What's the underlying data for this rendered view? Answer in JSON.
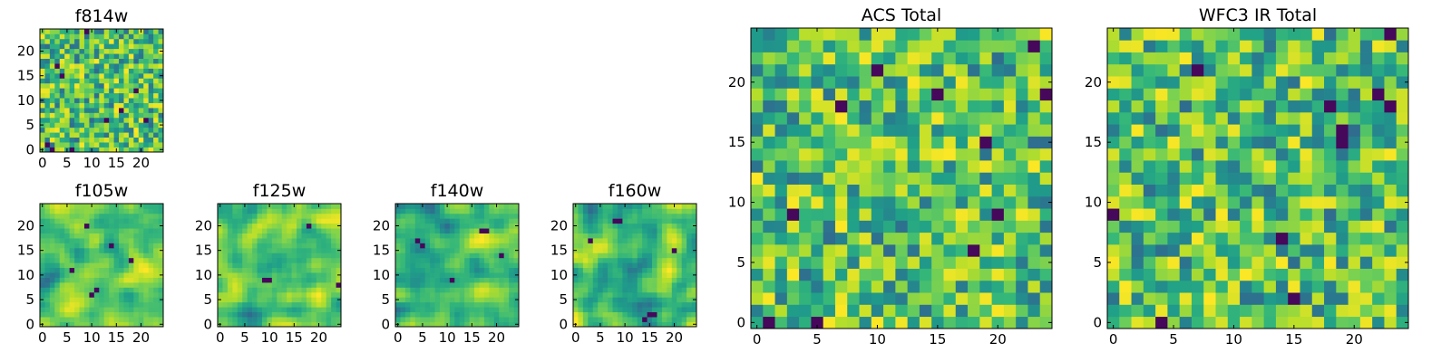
{
  "chart_data": [
    {
      "id": "f814w",
      "type": "heatmap",
      "title": "f814w",
      "grid_size": 25,
      "xticks": [
        "0",
        "5",
        "10",
        "15",
        "20"
      ],
      "yticks": [
        "0",
        "5",
        "10",
        "15",
        "20"
      ],
      "xlim": [
        -0.5,
        24.5
      ],
      "ylim": [
        -0.5,
        24.5
      ],
      "colormap": "viridis",
      "seed": 814,
      "smooth": 0,
      "dark_cells": [
        [
          2,
          0
        ],
        [
          6,
          0
        ],
        [
          1,
          1
        ],
        [
          21,
          6
        ],
        [
          13,
          6
        ],
        [
          3,
          17
        ],
        [
          9,
          24
        ],
        [
          16,
          8
        ],
        [
          4,
          15
        ],
        [
          19,
          12
        ]
      ]
    },
    {
      "id": "f105w",
      "type": "heatmap",
      "title": "f105w",
      "grid_size": 25,
      "xticks": [
        "0",
        "5",
        "10",
        "15",
        "20"
      ],
      "yticks": [
        "0",
        "5",
        "10",
        "15",
        "20"
      ],
      "xlim": [
        -0.5,
        24.5
      ],
      "ylim": [
        -0.5,
        24.5
      ],
      "colormap": "viridis",
      "seed": 105,
      "smooth": 2,
      "dark_cells": [
        [
          10,
          6
        ],
        [
          11,
          7
        ],
        [
          9,
          20
        ],
        [
          14,
          16
        ],
        [
          6,
          11
        ],
        [
          18,
          13
        ]
      ]
    },
    {
      "id": "f125w",
      "type": "heatmap",
      "title": "f125w",
      "grid_size": 25,
      "xticks": [
        "0",
        "5",
        "10",
        "15",
        "20"
      ],
      "yticks": [
        "0",
        "5",
        "10",
        "15",
        "20"
      ],
      "xlim": [
        -0.5,
        24.5
      ],
      "ylim": [
        -0.5,
        24.5
      ],
      "colormap": "viridis",
      "seed": 125,
      "smooth": 2,
      "dark_cells": [
        [
          9,
          9
        ],
        [
          10,
          9
        ],
        [
          24,
          8
        ],
        [
          18,
          20
        ]
      ]
    },
    {
      "id": "f140w",
      "type": "heatmap",
      "title": "f140w",
      "grid_size": 25,
      "xticks": [
        "0",
        "5",
        "10",
        "15",
        "20"
      ],
      "yticks": [
        "0",
        "5",
        "10",
        "15",
        "20"
      ],
      "xlim": [
        -0.5,
        24.5
      ],
      "ylim": [
        -0.5,
        24.5
      ],
      "colormap": "viridis",
      "seed": 140,
      "smooth": 2,
      "dark_cells": [
        [
          4,
          17
        ],
        [
          5,
          16
        ],
        [
          17,
          19
        ],
        [
          18,
          19
        ],
        [
          21,
          14
        ],
        [
          11,
          9
        ]
      ]
    },
    {
      "id": "f160w",
      "type": "heatmap",
      "title": "f160w",
      "grid_size": 25,
      "xticks": [
        "0",
        "5",
        "10",
        "15",
        "20"
      ],
      "yticks": [
        "0",
        "5",
        "10",
        "15",
        "20"
      ],
      "xlim": [
        -0.5,
        24.5
      ],
      "ylim": [
        -0.5,
        24.5
      ],
      "colormap": "viridis",
      "seed": 160,
      "smooth": 2,
      "dark_cells": [
        [
          8,
          21
        ],
        [
          9,
          21
        ],
        [
          15,
          2
        ],
        [
          16,
          2
        ],
        [
          14,
          1
        ],
        [
          3,
          17
        ],
        [
          20,
          15
        ]
      ]
    },
    {
      "id": "acs-total",
      "type": "heatmap",
      "title": "ACS Total",
      "grid_size": 25,
      "xticks": [
        "0",
        "5",
        "10",
        "15",
        "20"
      ],
      "yticks": [
        "0",
        "5",
        "10",
        "15",
        "20"
      ],
      "xlim": [
        -0.5,
        24.5
      ],
      "ylim": [
        -0.5,
        24.5
      ],
      "colormap": "viridis",
      "seed": 201,
      "smooth": 0,
      "dark_cells": [
        [
          1,
          0
        ],
        [
          5,
          0
        ],
        [
          10,
          21
        ],
        [
          15,
          19
        ],
        [
          19,
          15
        ],
        [
          23,
          23
        ],
        [
          20,
          9
        ],
        [
          18,
          6
        ],
        [
          24,
          19
        ],
        [
          7,
          18
        ],
        [
          3,
          9
        ]
      ]
    },
    {
      "id": "wfc3-ir-total",
      "type": "heatmap",
      "title": "WFC3 IR Total",
      "grid_size": 25,
      "xticks": [
        "0",
        "5",
        "10",
        "15",
        "20"
      ],
      "yticks": [
        "0",
        "5",
        "10",
        "15",
        "20"
      ],
      "xlim": [
        -0.5,
        24.5
      ],
      "ylim": [
        -0.5,
        24.5
      ],
      "colormap": "viridis",
      "seed": 301,
      "smooth": 0,
      "dark_cells": [
        [
          4,
          0
        ],
        [
          15,
          2
        ],
        [
          14,
          7
        ],
        [
          19,
          15
        ],
        [
          19,
          16
        ],
        [
          0,
          9
        ],
        [
          23,
          18
        ],
        [
          7,
          21
        ],
        [
          22,
          19
        ],
        [
          18,
          18
        ],
        [
          23,
          24
        ]
      ]
    }
  ]
}
